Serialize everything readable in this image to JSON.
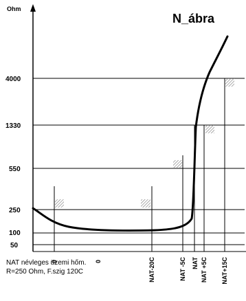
{
  "chart_data": {
    "type": "line",
    "title": "N_ábra",
    "ylabel": "Ohm",
    "y_ticks": [
      "4000",
      "1330",
      "550",
      "250",
      "100",
      "50"
    ],
    "x_ticks": [
      "0",
      "0",
      "NAT-20C",
      "NAT -5C",
      "NAT",
      "NAT +5C",
      "NAT+15C"
    ],
    "note": [
      "NAT névleges üzemi hőm.",
      "R=250 Ohm, F.szig 120C"
    ],
    "series": [
      {
        "x": [
          "left edge",
          "0",
          "0",
          "NAT-20C",
          "NAT -5C",
          "NAT",
          "NAT +5C",
          "NAT+15C"
        ],
        "y": [
          250,
          120,
          100,
          100,
          140,
          1330,
          4000,
          8000
        ]
      }
    ]
  }
}
